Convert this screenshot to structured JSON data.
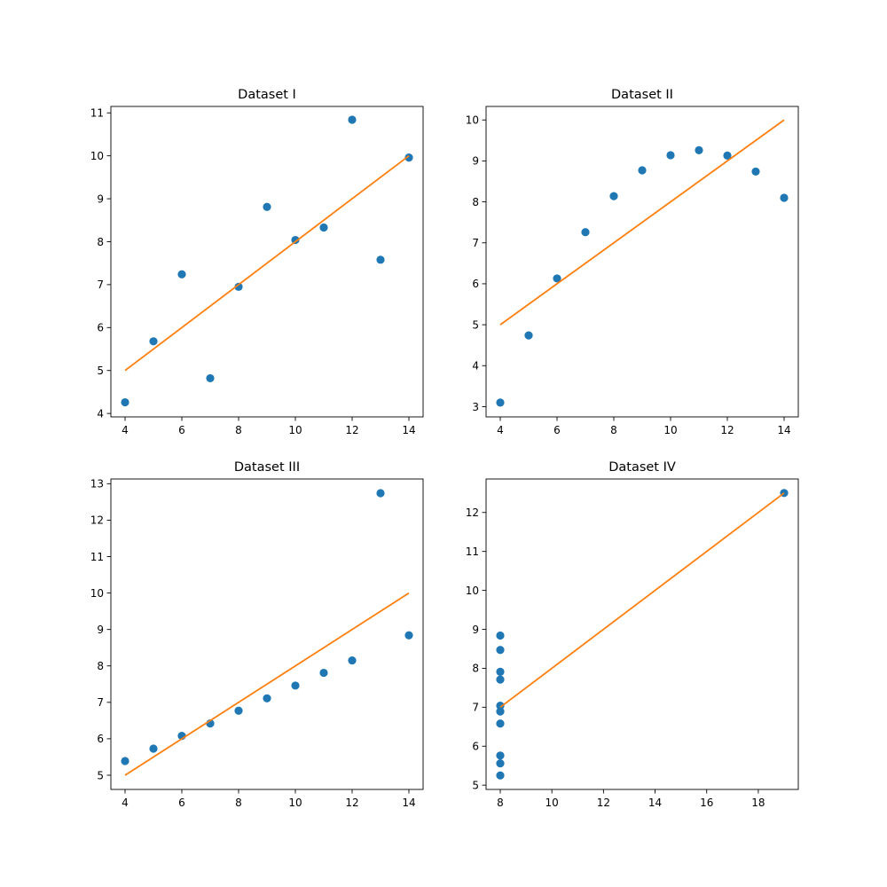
{
  "chart_data": [
    {
      "type": "scatter",
      "title": "Dataset I",
      "xlabel": "",
      "ylabel": "",
      "xlim": [
        3.5,
        14.5
      ],
      "ylim": [
        3.92,
        11.15
      ],
      "xticks": [
        4,
        6,
        8,
        10,
        12,
        14
      ],
      "yticks": [
        4,
        5,
        6,
        7,
        8,
        9,
        10,
        11
      ],
      "grid": false,
      "legend": "none",
      "series": [
        {
          "kind": "scatter",
          "color": "#1f77b4",
          "x": [
            4,
            5,
            6,
            7,
            8,
            9,
            10,
            11,
            12,
            13,
            14
          ],
          "y": [
            4.26,
            5.68,
            7.24,
            4.82,
            6.95,
            8.81,
            8.04,
            8.33,
            10.84,
            7.58,
            9.96
          ]
        },
        {
          "kind": "line",
          "color": "#ff7f0e",
          "x": [
            4,
            14
          ],
          "y": [
            5.0,
            10.0
          ]
        }
      ]
    },
    {
      "type": "scatter",
      "title": "Dataset II",
      "xlabel": "",
      "ylabel": "",
      "xlim": [
        3.5,
        14.5
      ],
      "ylim": [
        2.75,
        10.33
      ],
      "xticks": [
        4,
        6,
        8,
        10,
        12,
        14
      ],
      "yticks": [
        3,
        4,
        5,
        6,
        7,
        8,
        9,
        10
      ],
      "grid": false,
      "legend": "none",
      "series": [
        {
          "kind": "scatter",
          "color": "#1f77b4",
          "x": [
            4,
            5,
            6,
            7,
            8,
            9,
            10,
            11,
            12,
            13,
            14
          ],
          "y": [
            3.1,
            4.74,
            6.13,
            7.26,
            8.14,
            8.77,
            9.14,
            9.26,
            9.13,
            8.74,
            8.1
          ]
        },
        {
          "kind": "line",
          "color": "#ff7f0e",
          "x": [
            4,
            14
          ],
          "y": [
            5.0,
            10.0
          ]
        }
      ]
    },
    {
      "type": "scatter",
      "title": "Dataset III",
      "xlabel": "",
      "ylabel": "",
      "xlim": [
        3.5,
        14.5
      ],
      "ylim": [
        4.61,
        13.13
      ],
      "xticks": [
        4,
        6,
        8,
        10,
        12,
        14
      ],
      "yticks": [
        5,
        6,
        7,
        8,
        9,
        10,
        11,
        12,
        13
      ],
      "grid": false,
      "legend": "none",
      "series": [
        {
          "kind": "scatter",
          "color": "#1f77b4",
          "x": [
            4,
            5,
            6,
            7,
            8,
            9,
            10,
            11,
            12,
            13,
            14
          ],
          "y": [
            5.39,
            5.73,
            6.08,
            6.42,
            6.77,
            7.11,
            7.46,
            7.81,
            8.15,
            12.74,
            8.84
          ]
        },
        {
          "kind": "line",
          "color": "#ff7f0e",
          "x": [
            4,
            14
          ],
          "y": [
            5.0,
            10.0
          ]
        }
      ]
    },
    {
      "type": "scatter",
      "title": "Dataset IV",
      "xlabel": "",
      "ylabel": "",
      "xlim": [
        7.45,
        19.55
      ],
      "ylim": [
        4.89,
        12.86
      ],
      "xticks": [
        8,
        10,
        12,
        14,
        16,
        18
      ],
      "yticks": [
        5,
        6,
        7,
        8,
        9,
        10,
        11,
        12
      ],
      "grid": false,
      "legend": "none",
      "series": [
        {
          "kind": "scatter",
          "color": "#1f77b4",
          "x": [
            8,
            8,
            8,
            8,
            8,
            8,
            8,
            19,
            8,
            8,
            8
          ],
          "y": [
            6.58,
            5.76,
            7.71,
            8.84,
            8.47,
            7.04,
            5.25,
            12.5,
            5.56,
            7.91,
            6.89
          ]
        },
        {
          "kind": "line",
          "color": "#ff7f0e",
          "x": [
            8,
            19
          ],
          "y": [
            7.0,
            12.5
          ]
        }
      ]
    }
  ]
}
